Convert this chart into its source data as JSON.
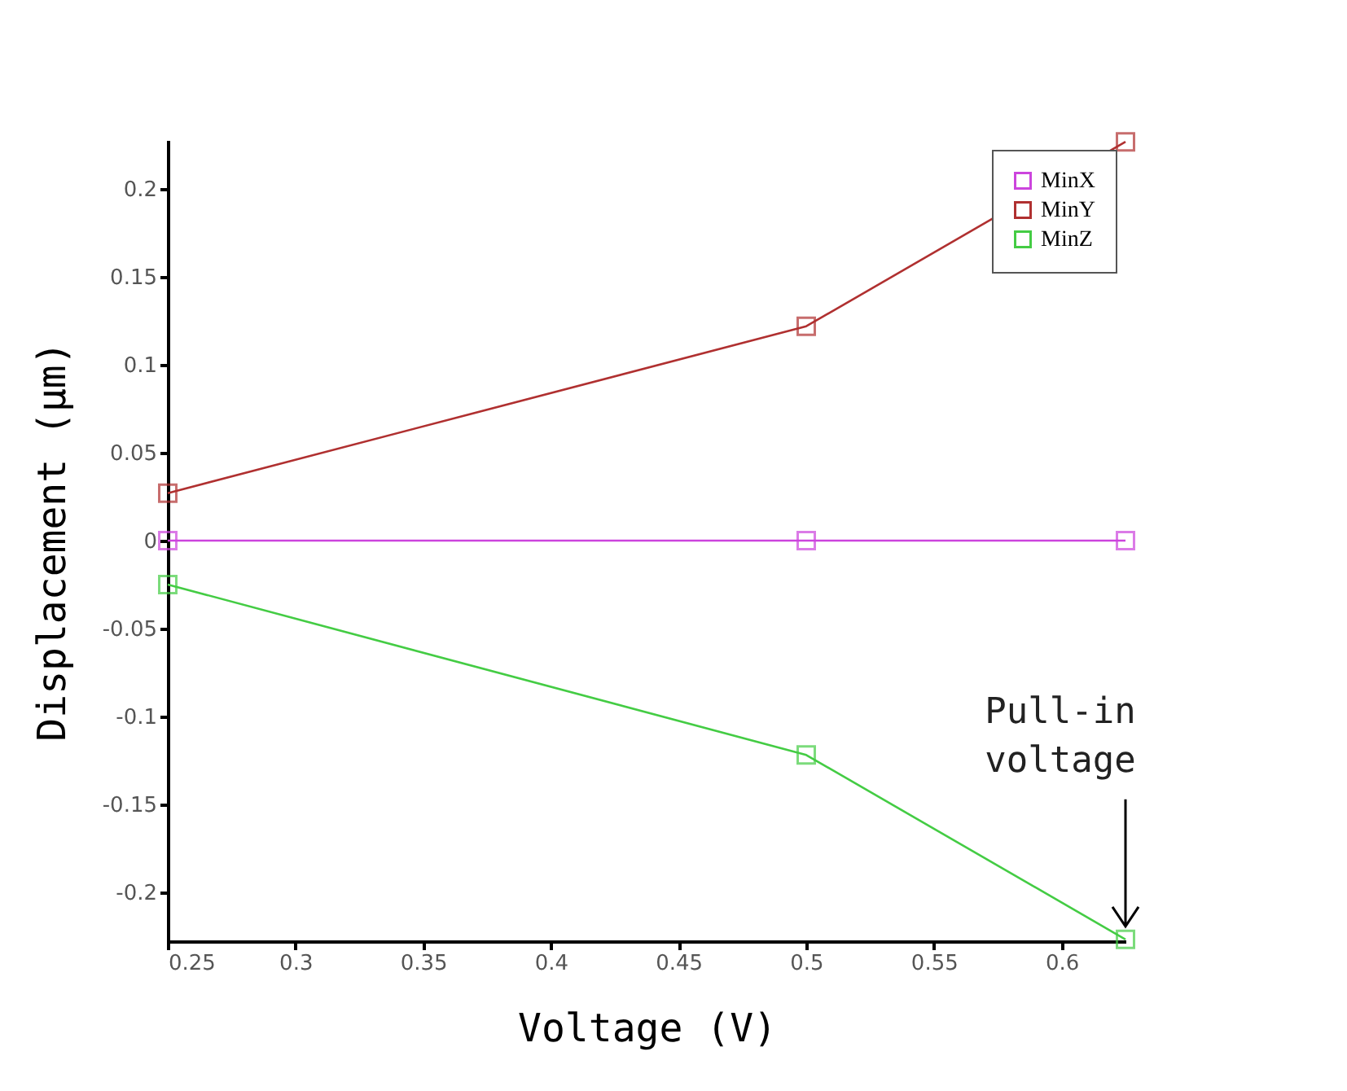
{
  "chart_data": {
    "type": "line",
    "xlabel": "Voltage (V)",
    "ylabel": "Displacement (μm)",
    "x": [
      0.25,
      0.5,
      0.625
    ],
    "series": [
      {
        "name": "MinX",
        "color": "#cc44dd",
        "values": [
          0,
          0,
          0
        ]
      },
      {
        "name": "MinY",
        "color": "#b03030",
        "values": [
          0.027,
          0.122,
          0.227
        ]
      },
      {
        "name": "MinZ",
        "color": "#44cc44",
        "values": [
          -0.025,
          -0.122,
          -0.227
        ]
      }
    ],
    "xlim": [
      0.25,
      0.625
    ],
    "xticks": [
      0.25,
      0.3,
      0.35,
      0.4,
      0.45,
      0.5,
      0.55,
      0.6
    ],
    "ylim": [
      -0.228,
      0.228
    ],
    "yticks": [
      -0.2,
      -0.15,
      -0.1,
      -0.05,
      0,
      0.05,
      0.1,
      0.15,
      0.2
    ],
    "grid": false,
    "legend": "top right",
    "marker": "square",
    "line_style": "solid",
    "annotations": [
      {
        "text": "Pull-in voltage",
        "x": 0.625,
        "y": -0.227
      }
    ]
  }
}
